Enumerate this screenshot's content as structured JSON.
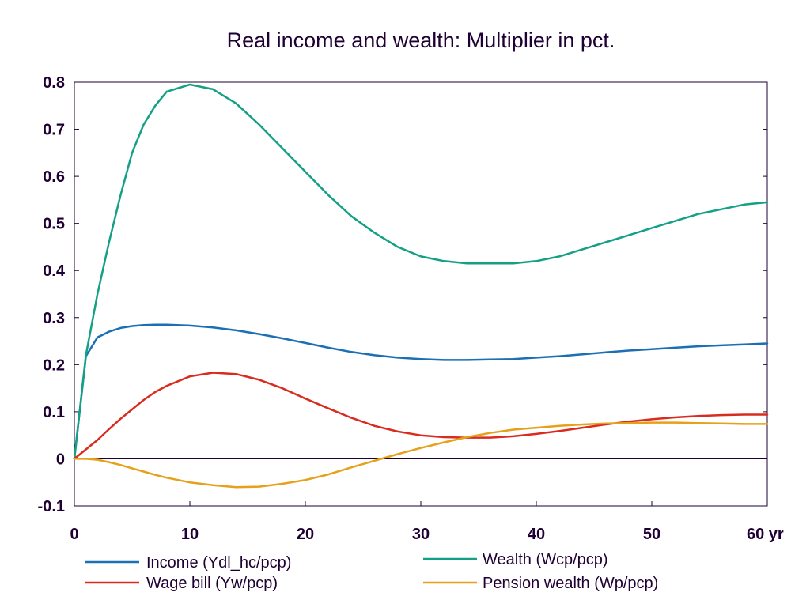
{
  "chart_data": {
    "type": "line",
    "title": "Real income and wealth: Multiplier in pct.",
    "xlabel": "",
    "ylabel": "",
    "x_unit_label": "yr",
    "xlim": [
      0,
      60
    ],
    "ylim": [
      -0.1,
      0.8
    ],
    "x_ticks": [
      0,
      10,
      20,
      30,
      40,
      50,
      60
    ],
    "x_tick_labels": [
      "0",
      "10",
      "20",
      "30",
      "40",
      "50",
      "60 yr"
    ],
    "y_ticks": [
      -0.1,
      0,
      0.1,
      0.2,
      0.3,
      0.4,
      0.5,
      0.6,
      0.7,
      0.8
    ],
    "y_tick_labels": [
      "-0.1",
      "0",
      "0.1",
      "0.2",
      "0.3",
      "0.4",
      "0.5",
      "0.6",
      "0.7",
      "0.8"
    ],
    "grid": false,
    "zero_line": true,
    "legend_position": "bottom",
    "x": [
      0,
      1,
      2,
      3,
      4,
      5,
      6,
      7,
      8,
      10,
      12,
      14,
      16,
      18,
      20,
      22,
      24,
      26,
      28,
      30,
      32,
      34,
      36,
      38,
      40,
      42,
      44,
      46,
      48,
      50,
      52,
      54,
      56,
      58,
      60
    ],
    "series": [
      {
        "name": "Income (Ydl_hc/pcp)",
        "color": "#1a6fb5",
        "values": [
          0,
          0.218,
          0.258,
          0.27,
          0.278,
          0.282,
          0.284,
          0.285,
          0.285,
          0.283,
          0.279,
          0.273,
          0.265,
          0.256,
          0.246,
          0.236,
          0.227,
          0.22,
          0.215,
          0.212,
          0.21,
          0.21,
          0.211,
          0.212,
          0.215,
          0.218,
          0.222,
          0.226,
          0.23,
          0.233,
          0.236,
          0.239,
          0.241,
          0.243,
          0.245
        ]
      },
      {
        "name": "Wealth (Wcp/pcp)",
        "color": "#14a085",
        "values": [
          0,
          0.22,
          0.35,
          0.46,
          0.56,
          0.65,
          0.71,
          0.75,
          0.78,
          0.795,
          0.785,
          0.755,
          0.71,
          0.66,
          0.61,
          0.56,
          0.515,
          0.48,
          0.45,
          0.43,
          0.42,
          0.415,
          0.415,
          0.415,
          0.42,
          0.43,
          0.445,
          0.46,
          0.475,
          0.49,
          0.505,
          0.52,
          0.53,
          0.54,
          0.545
        ]
      },
      {
        "name": "Wage bill (Yw/pcp)",
        "color": "#d92b1e",
        "values": [
          0,
          0.02,
          0.04,
          0.063,
          0.085,
          0.105,
          0.125,
          0.142,
          0.155,
          0.175,
          0.183,
          0.18,
          0.168,
          0.15,
          0.128,
          0.107,
          0.087,
          0.07,
          0.058,
          0.05,
          0.046,
          0.045,
          0.045,
          0.048,
          0.053,
          0.059,
          0.066,
          0.073,
          0.079,
          0.084,
          0.088,
          0.091,
          0.093,
          0.094,
          0.094
        ]
      },
      {
        "name": "Pension wealth (Wp/pcp)",
        "color": "#e6a01a",
        "values": [
          0,
          0,
          -0.002,
          -0.007,
          -0.013,
          -0.02,
          -0.027,
          -0.034,
          -0.04,
          -0.05,
          -0.056,
          -0.06,
          -0.059,
          -0.053,
          -0.045,
          -0.033,
          -0.018,
          -0.004,
          0.01,
          0.023,
          0.035,
          0.046,
          0.055,
          0.062,
          0.066,
          0.07,
          0.073,
          0.075,
          0.076,
          0.077,
          0.077,
          0.076,
          0.075,
          0.074,
          0.074
        ]
      }
    ]
  }
}
